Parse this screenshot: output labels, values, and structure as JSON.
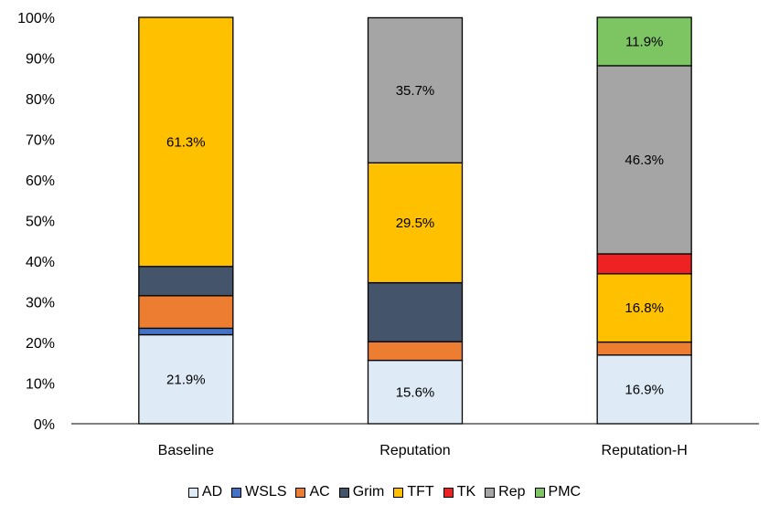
{
  "chart_data": {
    "type": "bar",
    "stacked": true,
    "categories": [
      "Baseline",
      "Reputation",
      "Reputation-H"
    ],
    "series": [
      {
        "name": "AD",
        "color": "#DEEBF7",
        "values": [
          21.9,
          15.6,
          16.9
        ]
      },
      {
        "name": "WSLS",
        "color": "#4472C4",
        "values": [
          1.6,
          0.0,
          0.0
        ]
      },
      {
        "name": "AC",
        "color": "#ED7D31",
        "values": [
          8.0,
          4.6,
          3.2
        ]
      },
      {
        "name": "Grim",
        "color": "#44546A",
        "values": [
          7.2,
          14.5,
          0.0
        ]
      },
      {
        "name": "TFT",
        "color": "#FFC000",
        "values": [
          61.3,
          29.5,
          16.8
        ]
      },
      {
        "name": "TK",
        "color": "#EE2222",
        "values": [
          0.0,
          0.0,
          4.9
        ]
      },
      {
        "name": "Rep",
        "color": "#A5A5A5",
        "values": [
          0.0,
          35.7,
          46.3
        ]
      },
      {
        "name": "PMC",
        "color": "#7DC462",
        "values": [
          0.0,
          0.0,
          11.9
        ]
      }
    ],
    "data_labels": [
      {
        "category": "Baseline",
        "series": "AD",
        "text": "21.9%"
      },
      {
        "category": "Baseline",
        "series": "TFT",
        "text": "61.3%"
      },
      {
        "category": "Reputation",
        "series": "AD",
        "text": "15.6%"
      },
      {
        "category": "Reputation",
        "series": "TFT",
        "text": "29.5%"
      },
      {
        "category": "Reputation",
        "series": "Rep",
        "text": "35.7%"
      },
      {
        "category": "Reputation-H",
        "series": "AD",
        "text": "16.9%"
      },
      {
        "category": "Reputation-H",
        "series": "TFT",
        "text": "16.8%"
      },
      {
        "category": "Reputation-H",
        "series": "Rep",
        "text": "46.3%"
      },
      {
        "category": "Reputation-H",
        "series": "PMC",
        "text": "11.9%"
      }
    ],
    "y_ticks": [
      "0%",
      "10%",
      "20%",
      "30%",
      "40%",
      "50%",
      "60%",
      "70%",
      "80%",
      "90%",
      "100%"
    ],
    "ylim": [
      0,
      100
    ],
    "title": "",
    "xlabel": "",
    "ylabel": "",
    "grid": false,
    "legend_position": "bottom"
  }
}
